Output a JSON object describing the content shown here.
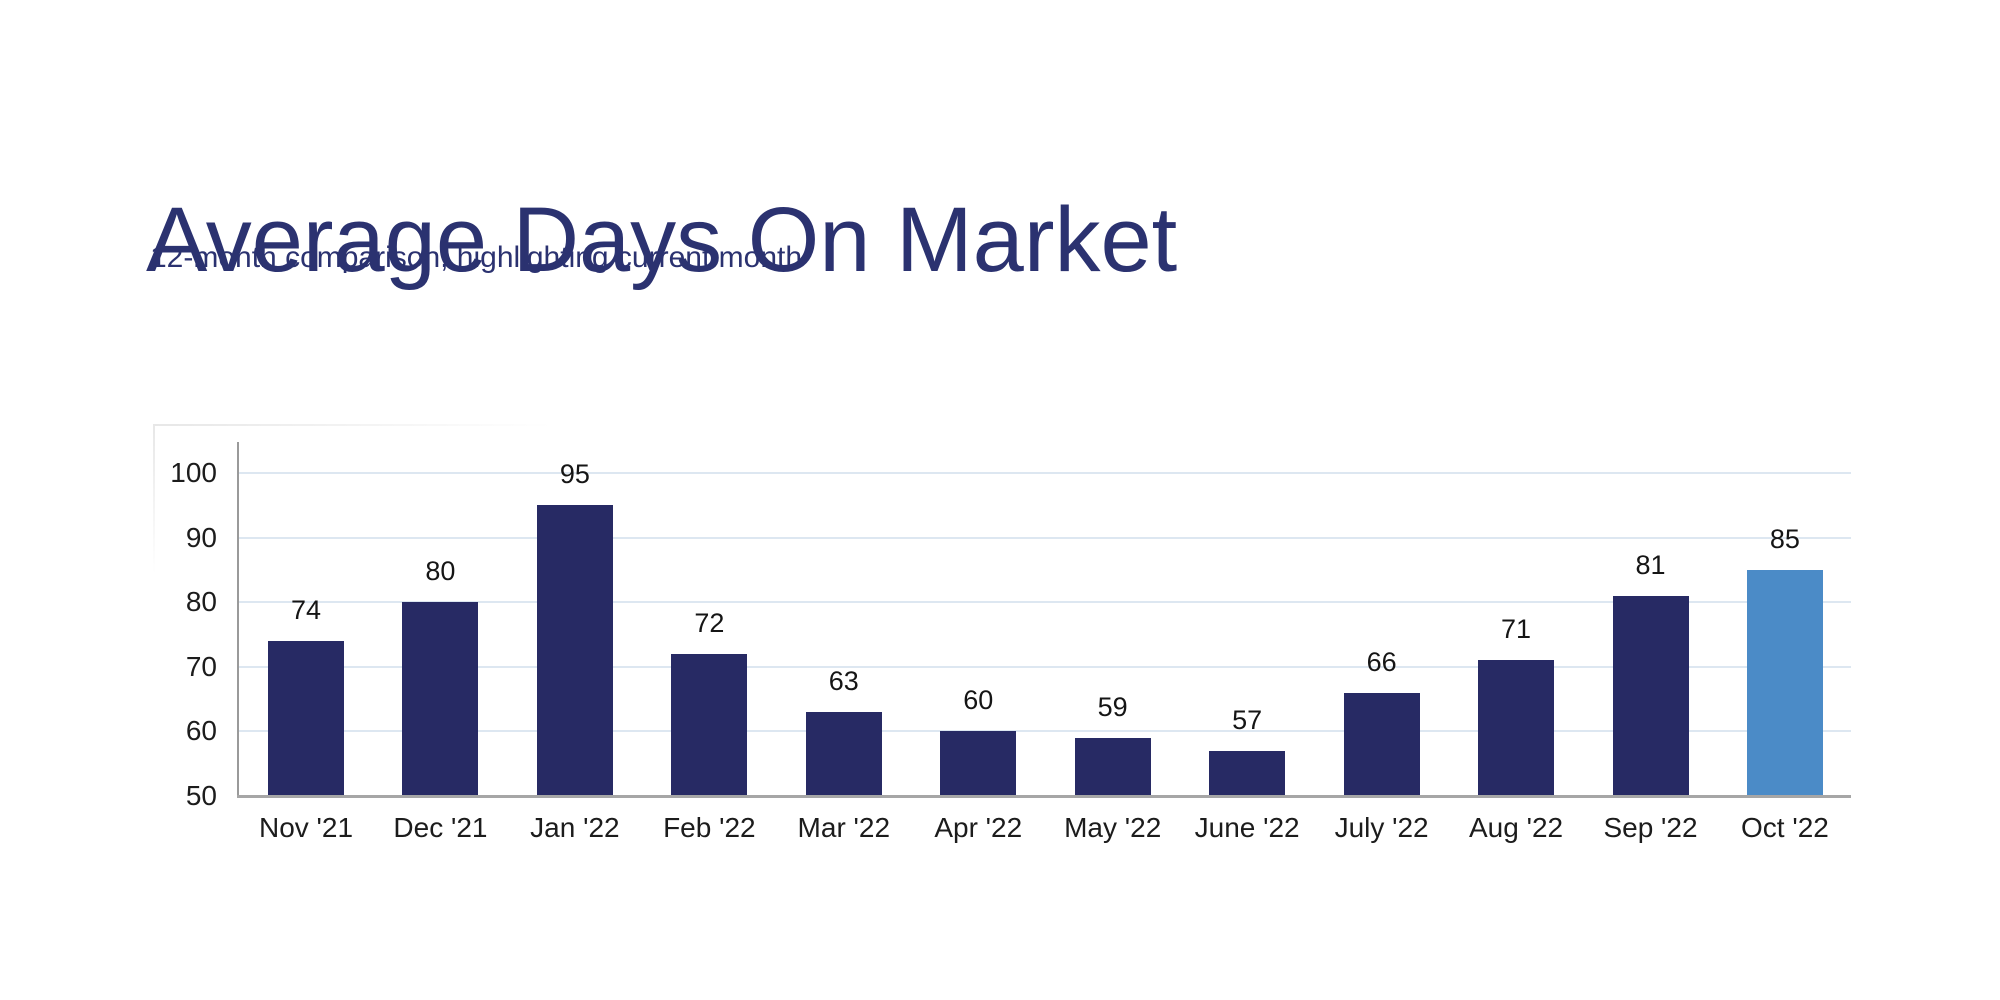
{
  "header": {
    "title": "Average Days On Market",
    "subtitle": "12-month comparison, highlighting current month"
  },
  "colors": {
    "title_text": "#2b3270",
    "subtitle_text": "#2b3270",
    "bar": "#272a64",
    "bar_highlight": "#4b8bc7",
    "gridline": "#dde7f1",
    "y_axis_line": "#9a9a9a",
    "baseline": "#a6a6a6",
    "tick_label_text": "#1c1c1c",
    "value_label_text": "#151515",
    "background": "#ffffff"
  },
  "chart_data": {
    "type": "bar",
    "title": "Average Days On Market",
    "subtitle": "12-month comparison, highlighting current month",
    "categories": [
      "Nov '21",
      "Dec '21",
      "Jan '22",
      "Feb '22",
      "Mar '22",
      "Apr '22",
      "May '22",
      "June '22",
      "July '22",
      "Aug '22",
      "Sep '22",
      "Oct '22"
    ],
    "values": [
      74,
      80,
      95,
      72,
      63,
      60,
      59,
      57,
      66,
      71,
      81,
      85
    ],
    "highlighted_category": "Oct '22",
    "highlighted_index": 11,
    "xlabel": "",
    "ylabel": "",
    "ylim": [
      50,
      100
    ],
    "yticks": [
      50,
      60,
      70,
      80,
      90,
      100
    ],
    "grid": "horizontal",
    "data_labels": true,
    "legend": "none"
  }
}
